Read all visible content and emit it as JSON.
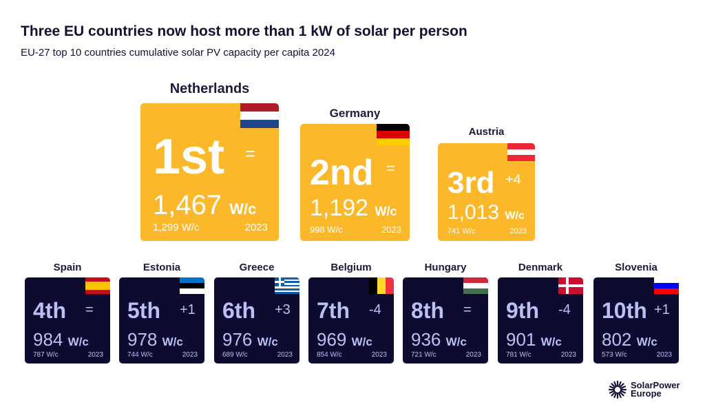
{
  "title": "Three EU countries now host more than 1 kW of solar per person",
  "subtitle": "EU-27 top 10 countries cumulative solar PV capacity per capita 2024",
  "chart_data": {
    "type": "table",
    "title": "Three EU countries now host more than 1 kW of solar per person",
    "subtitle": "EU-27 top 10 countries cumulative solar PV capacity per capita 2024",
    "unit": "W/c",
    "prev_year": "2023",
    "rows": [
      {
        "country": "Netherlands",
        "rank": "1st",
        "change": "=",
        "value": "1,467",
        "prev": "1,299 W/c",
        "flag": [
          "#ae1c28",
          "#ffffff",
          "#21468b"
        ],
        "flag_dir": "h"
      },
      {
        "country": "Germany",
        "rank": "2nd",
        "change": "=",
        "value": "1,192",
        "prev": "998 W/c",
        "flag": [
          "#000000",
          "#dd0000",
          "#ffce00"
        ],
        "flag_dir": "h"
      },
      {
        "country": "Austria",
        "rank": "3rd",
        "change": "+4",
        "value": "1,013",
        "prev": "741 W/c",
        "flag": [
          "#ed2939",
          "#ffffff",
          "#ed2939"
        ],
        "flag_dir": "h"
      },
      {
        "country": "Spain",
        "rank": "4th",
        "change": "=",
        "value": "984",
        "prev": "787 W/c",
        "flag": [
          "#c60b1e",
          "#ffc400",
          "#ffc400",
          "#c60b1e"
        ],
        "flag_dir": "h"
      },
      {
        "country": "Estonia",
        "rank": "5th",
        "change": "+1",
        "value": "978",
        "prev": "744 W/c",
        "flag": [
          "#0072ce",
          "#000000",
          "#ffffff"
        ],
        "flag_dir": "h"
      },
      {
        "country": "Greece",
        "rank": "6th",
        "change": "+3",
        "value": "976",
        "prev": "689 W/c",
        "flag": [
          "#0d5eaf",
          "#ffffff",
          "#0d5eaf",
          "#ffffff",
          "#0d5eaf",
          "#ffffff",
          "#0d5eaf",
          "#ffffff",
          "#0d5eaf"
        ],
        "flag_dir": "h"
      },
      {
        "country": "Belgium",
        "rank": "7th",
        "change": "-4",
        "value": "969",
        "prev": "854 W/c",
        "flag": [
          "#000000",
          "#fdda24",
          "#ef3340"
        ],
        "flag_dir": "v"
      },
      {
        "country": "Hungary",
        "rank": "8th",
        "change": "=",
        "value": "936",
        "prev": "721 W/c",
        "flag": [
          "#cd2a3e",
          "#ffffff",
          "#436f4d"
        ],
        "flag_dir": "h"
      },
      {
        "country": "Denmark",
        "rank": "9th",
        "change": "-4",
        "value": "901",
        "prev": "781 W/c",
        "flag": [
          "#c8102e"
        ],
        "flag_dir": "h"
      },
      {
        "country": "Slovenia",
        "rank": "10th",
        "change": "+1",
        "value": "802",
        "prev": "573 W/c",
        "flag": [
          "#ffffff",
          "#0000ff",
          "#ff0000"
        ],
        "flag_dir": "h"
      }
    ]
  },
  "logo": {
    "line1": "SolarPower",
    "line2": "Europe"
  }
}
